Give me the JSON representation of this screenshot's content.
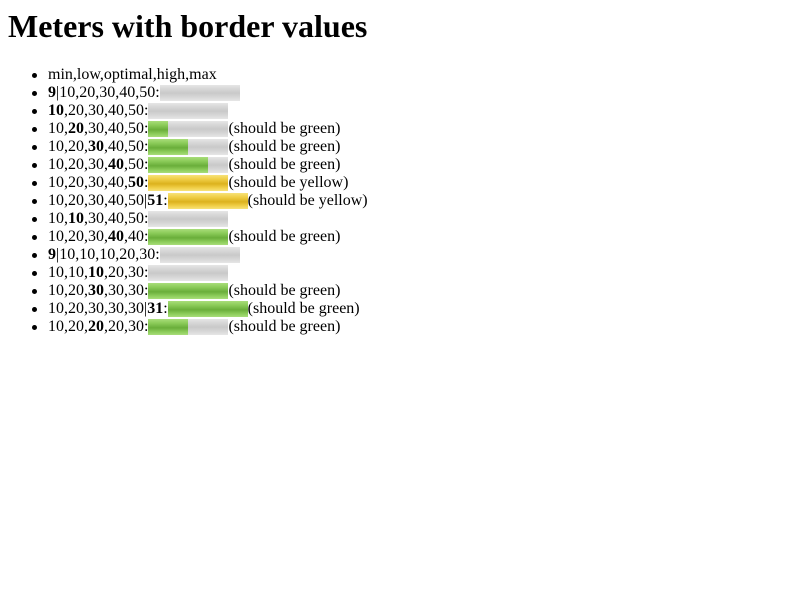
{
  "title": "Meters with border values",
  "header_item": "min,low,optimal,high,max",
  "colors": {
    "track": "#d3d3d3",
    "green": "#7cbf48",
    "yellow": "#eccb3c"
  },
  "rows": [
    {
      "segs": [
        {
          "t": "9",
          "b": true
        },
        {
          "t": "|10,20,30,40,50: "
        }
      ],
      "fill": 0,
      "color": "none",
      "note": ""
    },
    {
      "segs": [
        {
          "t": "10",
          "b": true
        },
        {
          "t": ",20,30,40,50: "
        }
      ],
      "fill": 0,
      "color": "none",
      "note": ""
    },
    {
      "segs": [
        {
          "t": "10,"
        },
        {
          "t": "20",
          "b": true
        },
        {
          "t": ",30,40,50: "
        }
      ],
      "fill": 0.25,
      "color": "green",
      "note": "(should be green)"
    },
    {
      "segs": [
        {
          "t": "10,20,"
        },
        {
          "t": "30",
          "b": true
        },
        {
          "t": ",40,50: "
        }
      ],
      "fill": 0.5,
      "color": "green",
      "note": "(should be green)"
    },
    {
      "segs": [
        {
          "t": "10,20,30,"
        },
        {
          "t": "40",
          "b": true
        },
        {
          "t": ",50: "
        }
      ],
      "fill": 0.75,
      "color": "green",
      "note": "(should be green)"
    },
    {
      "segs": [
        {
          "t": "10,20,30,40,"
        },
        {
          "t": "50",
          "b": true
        },
        {
          "t": ": "
        }
      ],
      "fill": 1,
      "color": "yellow",
      "note": "(should be yellow)"
    },
    {
      "segs": [
        {
          "t": "10,20,30,40,50|"
        },
        {
          "t": "51",
          "b": true
        },
        {
          "t": ": "
        }
      ],
      "fill": 1,
      "color": "yellow",
      "note": "(should be yellow)"
    },
    {
      "segs": [
        {
          "t": "10,"
        },
        {
          "t": "10",
          "b": true
        },
        {
          "t": ",30,40,50: "
        }
      ],
      "fill": 0,
      "color": "none",
      "note": ""
    },
    {
      "segs": [
        {
          "t": "10,20,30,"
        },
        {
          "t": "40",
          "b": true
        },
        {
          "t": ",40: "
        }
      ],
      "fill": 1,
      "color": "green",
      "note": "(should be green)"
    },
    {
      "segs": [
        {
          "t": "9",
          "b": true
        },
        {
          "t": "|10,10,10,20,30: "
        }
      ],
      "fill": 0,
      "color": "none",
      "note": ""
    },
    {
      "segs": [
        {
          "t": "10,10,"
        },
        {
          "t": "10",
          "b": true
        },
        {
          "t": ",20,30: "
        }
      ],
      "fill": 0,
      "color": "none",
      "note": ""
    },
    {
      "segs": [
        {
          "t": "10,20,"
        },
        {
          "t": "30",
          "b": true
        },
        {
          "t": ",30,30: "
        }
      ],
      "fill": 1,
      "color": "green",
      "note": "(should be green)"
    },
    {
      "segs": [
        {
          "t": "10,20,30,30,30|"
        },
        {
          "t": "31",
          "b": true
        },
        {
          "t": ": "
        }
      ],
      "fill": 1,
      "color": "green",
      "note": "(should be green)"
    },
    {
      "segs": [
        {
          "t": "10,20,"
        },
        {
          "t": "20",
          "b": true
        },
        {
          "t": ",20,30: "
        }
      ],
      "fill": 0.5,
      "color": "green",
      "note": "(should be green)"
    }
  ]
}
